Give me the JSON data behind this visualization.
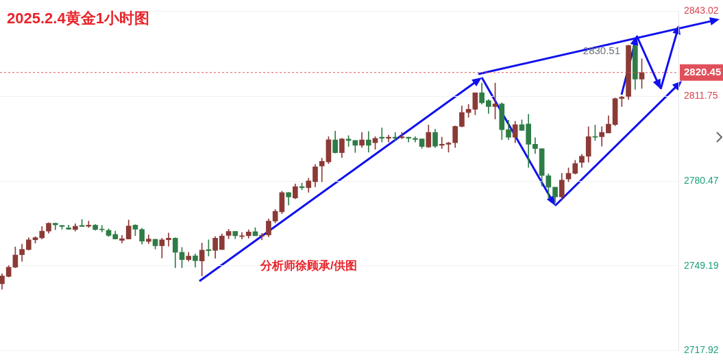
{
  "chart_data": {
    "type": "candlestick",
    "title": "2025.2.4黄金1小时图",
    "annotations": [
      "2830.51",
      "分析师徐顾承/供图"
    ],
    "categories": [
      null,
      null,
      null,
      null,
      null,
      null,
      null,
      null,
      null,
      null,
      null,
      null,
      null,
      null,
      null,
      null,
      null,
      null,
      null,
      null,
      null,
      null,
      null,
      null,
      null,
      null,
      null,
      null,
      null,
      null,
      null,
      null,
      null,
      null,
      null,
      null,
      null,
      null,
      null,
      null,
      null,
      null,
      null,
      null,
      null,
      null,
      null,
      null,
      null,
      null,
      null,
      null,
      null,
      null,
      null,
      null,
      null,
      null,
      null,
      null,
      null,
      null,
      null,
      null,
      null,
      null,
      null,
      null,
      null,
      null,
      null,
      null,
      null,
      null,
      null,
      null,
      null,
      null,
      null,
      null,
      null,
      null,
      null,
      null,
      null,
      null,
      null,
      null,
      null,
      null,
      null,
      null,
      null,
      null,
      null,
      null,
      null
    ],
    "ohlc": [
      [
        2742.6,
        2746.3,
        2740.6,
        2745.5
      ],
      [
        2745.3,
        2749.3,
        2745.1,
        2748.7
      ],
      [
        2748.7,
        2756.2,
        2748.5,
        2753.2
      ],
      [
        2753.3,
        2757.2,
        2750.9,
        2755.3
      ],
      [
        2755.2,
        2759.6,
        2755.0,
        2758.8
      ],
      [
        2758.8,
        2760.0,
        2757.6,
        2759.6
      ],
      [
        2759.5,
        2763.7,
        2759.1,
        2762.0
      ],
      [
        2762.0,
        2765.1,
        2761.2,
        2764.9
      ],
      [
        2764.9,
        2765.0,
        2762.5,
        2764.3
      ],
      [
        2764.1,
        2764.1,
        2762.7,
        2763.7
      ],
      [
        2763.2,
        2764.2,
        2762.7,
        2762.7
      ],
      [
        2762.6,
        2764.7,
        2762.0,
        2763.8
      ],
      [
        2764.1,
        2766.3,
        2763.7,
        2763.7
      ],
      [
        2763.8,
        2765.7,
        2763.3,
        2764.2
      ],
      [
        2764.2,
        2764.5,
        2762.3,
        2762.6
      ],
      [
        2762.7,
        2764.1,
        2761.7,
        2762.5
      ],
      [
        2762.3,
        2762.9,
        2760.0,
        2760.4
      ],
      [
        2760.8,
        2762.0,
        2759.1,
        2759.1
      ],
      [
        2758.6,
        2760.4,
        2757.6,
        2759.2
      ],
      [
        2759.1,
        2766.1,
        2759.1,
        2763.9
      ],
      [
        2764.2,
        2764.4,
        2760.3,
        2762.7
      ],
      [
        2762.6,
        2763.1,
        2757.2,
        2758.3
      ],
      [
        2758.2,
        2760.6,
        2757.4,
        2759.1
      ],
      [
        2759.0,
        2759.0,
        2755.4,
        2756.6
      ],
      [
        2756.6,
        2759.4,
        2752.1,
        2758.8
      ],
      [
        2758.8,
        2761.3,
        2756.4,
        2759.4
      ],
      [
        2759.4,
        2759.6,
        2748.5,
        2754.2
      ],
      [
        2754.2,
        2756.0,
        2748.5,
        2751.5
      ],
      [
        2751.5,
        2754.2,
        2750.9,
        2752.8
      ],
      [
        2752.9,
        2753.6,
        2748.7,
        2751.1
      ],
      [
        2751.0,
        2757.6,
        2745.5,
        2755.0
      ],
      [
        2755.2,
        2758.8,
        2752.8,
        2754.8
      ],
      [
        2754.9,
        2760.0,
        2752.0,
        2759.4
      ],
      [
        2755.2,
        2761.0,
        2755.2,
        2760.2
      ],
      [
        2760.4,
        2762.7,
        2759.2,
        2761.9
      ],
      [
        2761.9,
        2761.9,
        2759.2,
        2760.3
      ],
      [
        2760.0,
        2761.5,
        2759.1,
        2760.3
      ],
      [
        2760.3,
        2762.5,
        2759.4,
        2761.7
      ],
      [
        2761.8,
        2763.3,
        2760.3,
        2760.3
      ],
      [
        2760.2,
        2761.2,
        2758.8,
        2760.5
      ],
      [
        2760.6,
        2766.5,
        2759.9,
        2765.7
      ],
      [
        2765.7,
        2770.0,
        2765.0,
        2769.3
      ],
      [
        2769.1,
        2776.7,
        2768.4,
        2776.2
      ],
      [
        2776.2,
        2776.3,
        2771.6,
        2774.6
      ],
      [
        2774.2,
        2779.4,
        2773.9,
        2778.4
      ],
      [
        2778.4,
        2779.7,
        2777.2,
        2778.0
      ],
      [
        2778.0,
        2781.5,
        2776.3,
        2780.5
      ],
      [
        2780.2,
        2786.6,
        2778.3,
        2785.7
      ],
      [
        2786.0,
        2788.9,
        2780.2,
        2787.7
      ],
      [
        2787.5,
        2796.8,
        2786.9,
        2795.7
      ],
      [
        2795.6,
        2798.8,
        2790.7,
        2790.9
      ],
      [
        2790.9,
        2796.2,
        2789.1,
        2796.0
      ],
      [
        2795.9,
        2797.2,
        2793.2,
        2795.4
      ],
      [
        2795.4,
        2795.4,
        2791.0,
        2793.6
      ],
      [
        2793.6,
        2798.4,
        2792.8,
        2795.6
      ],
      [
        2795.6,
        2798.7,
        2791.1,
        2793.6
      ],
      [
        2794.6,
        2796.8,
        2792.2,
        2796.2
      ],
      [
        2796.6,
        2800.0,
        2794.8,
        2796.2
      ],
      [
        2796.2,
        2797.4,
        2794.8,
        2796.6
      ],
      [
        2796.6,
        2798.4,
        2795.2,
        2796.2
      ],
      [
        2796.4,
        2798.4,
        2796.0,
        2796.8
      ],
      [
        2796.6,
        2796.6,
        2794.8,
        2796.2
      ],
      [
        2796.2,
        2796.8,
        2794.8,
        2795.8
      ],
      [
        2796.0,
        2796.0,
        2792.5,
        2793.2
      ],
      [
        2793.0,
        2801.1,
        2792.8,
        2798.4
      ],
      [
        2798.4,
        2799.6,
        2792.8,
        2793.3
      ],
      [
        2793.6,
        2796.6,
        2792.4,
        2794.0
      ],
      [
        2794.0,
        2794.8,
        2791.1,
        2794.5
      ],
      [
        2794.6,
        2800.8,
        2792.8,
        2800.6
      ],
      [
        2800.6,
        2808.1,
        2800.4,
        2805.7
      ],
      [
        2805.7,
        2808.7,
        2803.9,
        2806.9
      ],
      [
        2806.9,
        2813.0,
        2804.9,
        2813.0
      ],
      [
        2813.0,
        2816.6,
        2808.8,
        2809.3
      ],
      [
        2810.1,
        2810.5,
        2805.4,
        2807.9
      ],
      [
        2807.9,
        2816.6,
        2803.3,
        2808.9
      ],
      [
        2808.9,
        2809.3,
        2795.7,
        2799.4
      ],
      [
        2799.4,
        2802.9,
        2795.7,
        2796.6
      ],
      [
        2796.6,
        2802.5,
        2794.6,
        2801.2
      ],
      [
        2801.2,
        2803.0,
        2799.1,
        2799.1
      ],
      [
        2801.5,
        2805.1,
        2785.5,
        2794.0
      ],
      [
        2794.0,
        2796.4,
        2790.6,
        2792.4
      ],
      [
        2792.4,
        2792.4,
        2778.6,
        2782.5
      ],
      [
        2782.4,
        2783.1,
        2774.2,
        2778.2
      ],
      [
        2778.2,
        2778.2,
        2772.4,
        2774.6
      ],
      [
        2774.6,
        2783.3,
        2773.4,
        2780.8
      ],
      [
        2781.2,
        2785.3,
        2780.2,
        2783.3
      ],
      [
        2783.3,
        2788.1,
        2783.0,
        2786.9
      ],
      [
        2787.3,
        2790.3,
        2785.5,
        2789.6
      ],
      [
        2789.6,
        2800.5,
        2787.4,
        2796.8
      ],
      [
        2796.8,
        2801.1,
        2795.4,
        2796.6
      ],
      [
        2796.8,
        2800.5,
        2793.3,
        2798.4
      ],
      [
        2798.2,
        2804.5,
        2798.2,
        2801.4
      ],
      [
        2801.3,
        2811.1,
        2800.8,
        2810.8
      ],
      [
        2810.9,
        2811.7,
        2807.9,
        2811.4
      ],
      [
        2811.6,
        2830.51,
        2810.5,
        2830.4
      ],
      [
        2830.3,
        2830.3,
        2814.2,
        2818.0
      ],
      [
        2818.0,
        2825.5,
        2814.6,
        2820.45
      ]
    ],
    "colors": [
      "#8b3a36",
      "#8b3a36",
      "#8b3a36",
      "#8b3a36",
      "#8b3a36",
      "#8b3a36",
      "#8b3a36",
      "#8b3a36",
      "#2e7d46",
      "#2e7d46",
      "#2e7d46",
      "#8b3a36",
      "#2e7d46",
      "#8b3a36",
      "#2e7d46",
      "#2e7d46",
      "#2e7d46",
      "#2e7d46",
      "#8b3a36",
      "#8b3a36",
      "#2e7d46",
      "#2e7d46",
      "#8b3a36",
      "#2e7d46",
      "#8b3a36",
      "#8b3a36",
      "#2e7d46",
      "#2e7d46",
      "#8b3a36",
      "#2e7d46",
      "#8b3a36",
      "#2e7d46",
      "#8b3a36",
      "#8b3a36",
      "#8b3a36",
      "#2e7d46",
      "#8b3a36",
      "#8b3a36",
      "#2e7d46",
      "#8b3a36",
      "#8b3a36",
      "#8b3a36",
      "#8b3a36",
      "#2e7d46",
      "#8b3a36",
      "#2e7d46",
      "#8b3a36",
      "#8b3a36",
      "#8b3a36",
      "#8b3a36",
      "#2e7d46",
      "#8b3a36",
      "#2e7d46",
      "#2e7d46",
      "#8b3a36",
      "#2e7d46",
      "#8b3a36",
      "#2e7d46",
      "#8b3a36",
      "#2e7d46",
      "#8b3a36",
      "#2e7d46",
      "#2e7d46",
      "#2e7d46",
      "#8b3a36",
      "#2e7d46",
      "#8b3a36",
      "#8b3a36",
      "#8b3a36",
      "#8b3a36",
      "#8b3a36",
      "#8b3a36",
      "#2e7d46",
      "#2e7d46",
      "#8b3a36",
      "#2e7d46",
      "#2e7d46",
      "#8b3a36",
      "#2e7d46",
      "#2e7d46",
      "#2e7d46",
      "#2e7d46",
      "#2e7d46",
      "#2e7d46",
      "#8b3a36",
      "#8b3a36",
      "#8b3a36",
      "#8b3a36",
      "#8b3a36",
      "#2e7d46",
      "#8b3a36",
      "#8b3a36",
      "#8b3a36",
      "#8b3a36",
      "#8b3a36",
      "#2e7d46",
      "#8b3a36"
    ],
    "ylim": [
      2717.92,
      2843.02
    ],
    "yticks": [
      2717.92,
      2749.19,
      2780.47,
      2811.75,
      2843.02
    ],
    "ref_lines": [
      {
        "axis": "y",
        "value": 2820.45,
        "label": "2820.45",
        "color": "#e0505a",
        "line_style": "dashed"
      }
    ],
    "grid": "y",
    "legend": false
  }
}
